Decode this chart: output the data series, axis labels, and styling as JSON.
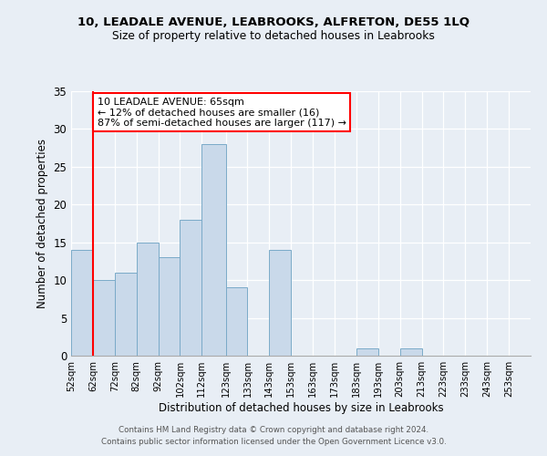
{
  "title": "10, LEADALE AVENUE, LEABROOKS, ALFRETON, DE55 1LQ",
  "subtitle": "Size of property relative to detached houses in Leabrooks",
  "xlabel": "Distribution of detached houses by size in Leabrooks",
  "ylabel": "Number of detached properties",
  "bar_color": "#c9d9ea",
  "bar_edge_color": "#7aaac8",
  "bin_labels": [
    "52sqm",
    "62sqm",
    "72sqm",
    "82sqm",
    "92sqm",
    "102sqm",
    "112sqm",
    "123sqm",
    "133sqm",
    "143sqm",
    "153sqm",
    "163sqm",
    "173sqm",
    "183sqm",
    "193sqm",
    "203sqm",
    "213sqm",
    "223sqm",
    "233sqm",
    "243sqm",
    "253sqm"
  ],
  "bar_heights": [
    14,
    10,
    11,
    15,
    13,
    18,
    28,
    9,
    0,
    14,
    0,
    0,
    0,
    1,
    0,
    1,
    0,
    0,
    0,
    0,
    0
  ],
  "ylim": [
    0,
    35
  ],
  "yticks": [
    0,
    5,
    10,
    15,
    20,
    25,
    30,
    35
  ],
  "property_line_x": 62,
  "property_line_label": "10 LEADALE AVENUE: 65sqm",
  "annotation_line1": "← 12% of detached houses are smaller (16)",
  "annotation_line2": "87% of semi-detached houses are larger (117) →",
  "annotation_box_color": "white",
  "annotation_box_edge_color": "red",
  "vline_color": "red",
  "footer1": "Contains HM Land Registry data © Crown copyright and database right 2024.",
  "footer2": "Contains public sector information licensed under the Open Government Licence v3.0.",
  "background_color": "#e8eef5",
  "plot_background_color": "#e8eef5",
  "bin_edges": [
    52,
    62,
    72,
    82,
    92,
    102,
    112,
    123,
    133,
    143,
    153,
    163,
    173,
    183,
    193,
    203,
    213,
    223,
    233,
    243,
    253,
    263
  ]
}
